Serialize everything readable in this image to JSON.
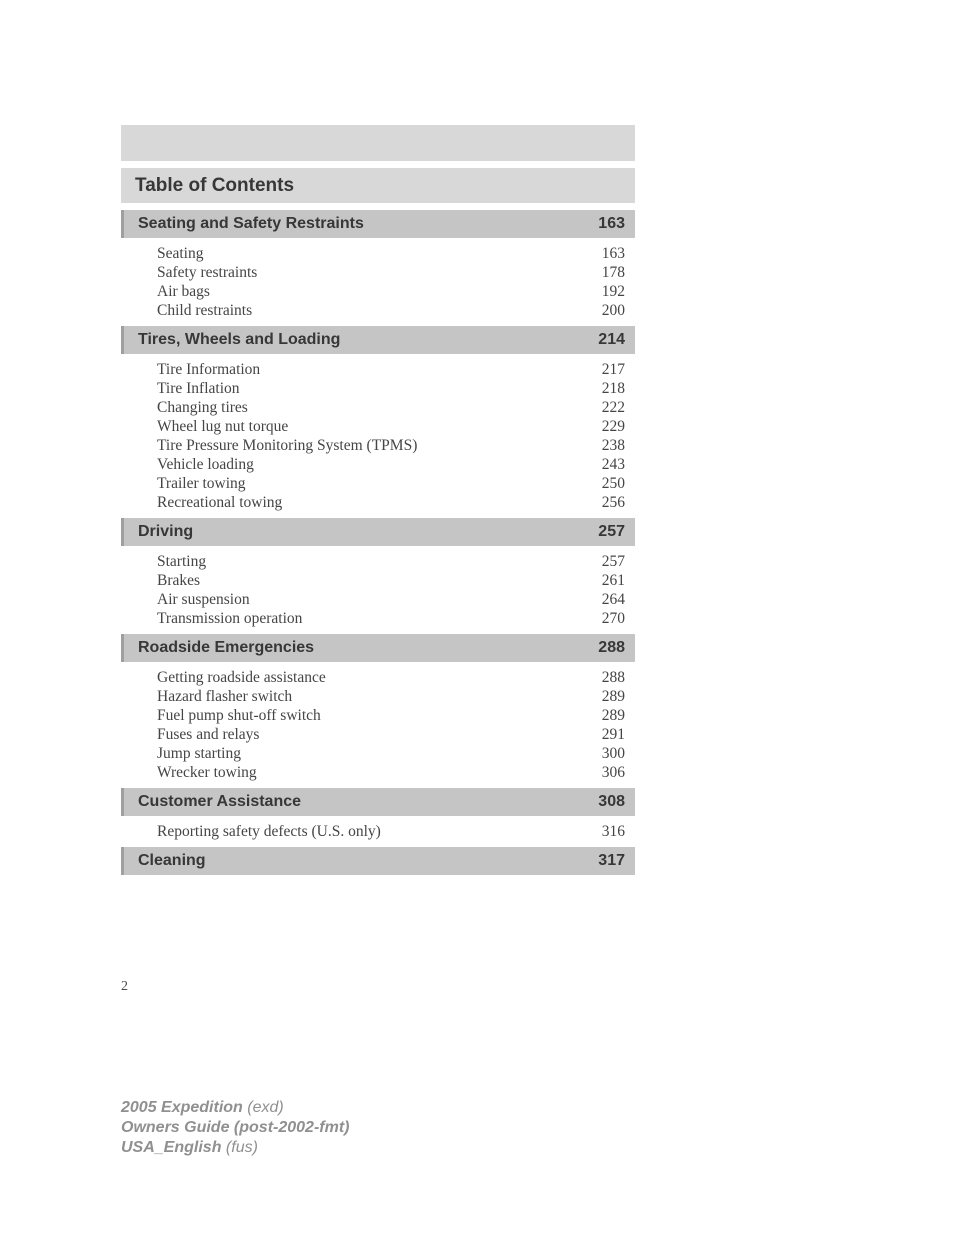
{
  "page_number": "2",
  "title": "Table of Contents",
  "footer": {
    "line1_bold": "2005 Expedition",
    "line1_italic": " (exd)",
    "line2_bold": "Owners Guide (post-2002-fmt)",
    "line3_bold": "USA_English",
    "line3_italic": " (fus)"
  },
  "sections": [
    {
      "name": "Seating and Safety Restraints",
      "page": "163",
      "items": [
        {
          "label": "Seating",
          "page": "163"
        },
        {
          "label": "Safety restraints",
          "page": "178"
        },
        {
          "label": "Air bags",
          "page": "192"
        },
        {
          "label": "Child restraints",
          "page": "200"
        }
      ]
    },
    {
      "name": "Tires, Wheels and Loading",
      "page": "214",
      "items": [
        {
          "label": "Tire Information",
          "page": "217"
        },
        {
          "label": "Tire Inflation",
          "page": "218"
        },
        {
          "label": "Changing tires",
          "page": "222"
        },
        {
          "label": "Wheel lug nut torque",
          "page": "229"
        },
        {
          "label": "Tire Pressure Monitoring System (TPMS)",
          "page": "238"
        },
        {
          "label": "Vehicle loading",
          "page": "243"
        },
        {
          "label": "Trailer towing",
          "page": "250"
        },
        {
          "label": "Recreational towing",
          "page": "256"
        }
      ]
    },
    {
      "name": "Driving",
      "page": "257",
      "items": [
        {
          "label": "Starting",
          "page": "257"
        },
        {
          "label": "Brakes",
          "page": "261"
        },
        {
          "label": "Air suspension",
          "page": "264"
        },
        {
          "label": "Transmission operation",
          "page": "270"
        }
      ]
    },
    {
      "name": "Roadside Emergencies",
      "page": "288",
      "items": [
        {
          "label": "Getting roadside assistance",
          "page": "288"
        },
        {
          "label": "Hazard flasher switch",
          "page": "289"
        },
        {
          "label": "Fuel pump shut-off switch",
          "page": "289"
        },
        {
          "label": "Fuses and relays",
          "page": "291"
        },
        {
          "label": "Jump starting",
          "page": "300"
        },
        {
          "label": "Wrecker towing",
          "page": "306"
        }
      ]
    },
    {
      "name": "Customer Assistance",
      "page": "308",
      "items": [
        {
          "label": "Reporting safety defects (U.S. only)",
          "page": "316"
        }
      ]
    },
    {
      "name": "Cleaning",
      "page": "317",
      "items": []
    }
  ],
  "style": {
    "page_bg": "#ffffff",
    "band_bg": "#d8d8d8",
    "section_bg": "#c5c5c5",
    "section_accent": "#9f9f9f",
    "head_text": "#373737",
    "body_text": "#454545",
    "footer_text": "#909090",
    "title_fontsize": 19,
    "section_fontsize": 16,
    "item_fontsize": 15.5,
    "footer_fontsize": 16
  }
}
